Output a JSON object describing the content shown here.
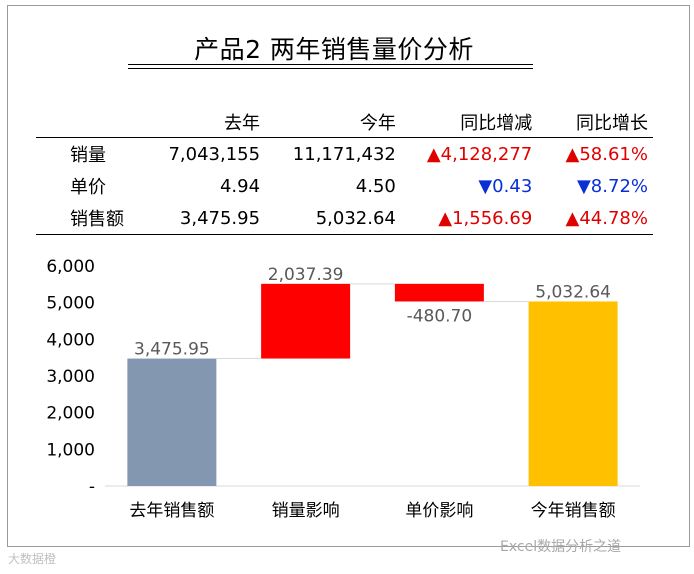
{
  "title": "产品2 两年销售量价分析",
  "table": {
    "headers": [
      "",
      "去年",
      "今年",
      "同比增减",
      "同比增长"
    ],
    "rows": [
      {
        "label": "销量",
        "last": "7,043,155",
        "this": "11,171,432",
        "change": "▲4,128,277",
        "growth": "▲58.61%",
        "dir": "up"
      },
      {
        "label": "单价",
        "last": "4.94",
        "this": "4.50",
        "change": "▼0.43",
        "growth": "▼8.72%",
        "dir": "down"
      },
      {
        "label": "销售额",
        "last": "3,475.95",
        "this": "5,032.64",
        "change": "▲1,556.69",
        "growth": "▲44.78%",
        "dir": "up"
      }
    ]
  },
  "chart_data": {
    "type": "bar",
    "subtype": "waterfall",
    "categories": [
      "去年销售额",
      "销量影响",
      "单价影响",
      "今年销售额"
    ],
    "values": [
      3475.95,
      2037.39,
      -480.7,
      5032.64
    ],
    "data_labels": [
      "3,475.95",
      "2,037.39",
      "-480.70",
      "5,032.64"
    ],
    "ylim": [
      0,
      6000
    ],
    "yticks": [
      "-",
      "1,000",
      "2,000",
      "3,000",
      "4,000",
      "5,000",
      "6,000"
    ],
    "colors": [
      "#8497b0",
      "#ff0000",
      "#ff0000",
      "#ffc000"
    ],
    "connector_color": "#d9d9d9",
    "grid": false,
    "legend": "none"
  },
  "watermarks": {
    "left": "大数据橙",
    "right": "Excel数据分析之道"
  }
}
